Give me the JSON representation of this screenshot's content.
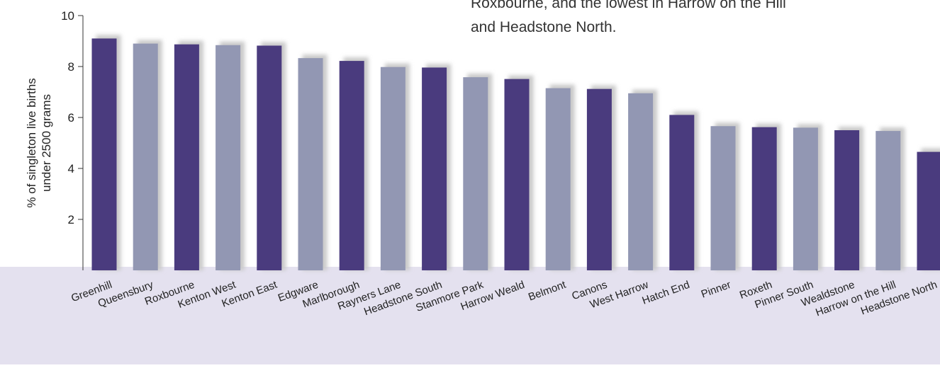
{
  "caption": {
    "line1": "Roxbourne, and the lowest in Harrow on the Hill",
    "line2": "and Headstone North."
  },
  "colors": {
    "dark_bar": "#4a3b7e",
    "light_bar": "#9297b3",
    "band": "#e4e1ef",
    "shadow": "#c9c9c9"
  },
  "chart_data": {
    "type": "bar",
    "title": "",
    "xlabel": "",
    "ylabel_lines": [
      "% of singleton live births",
      "under 2500 grams"
    ],
    "ylim": [
      0,
      10
    ],
    "yticks": [
      2,
      4,
      6,
      8,
      10
    ],
    "tick_labels": [
      "2",
      "4",
      "6",
      "8",
      "10"
    ],
    "grid": false,
    "categories": [
      "Greenhill",
      "Queensbury",
      "Roxbourne",
      "Kenton West",
      "Kenton East",
      "Edgware",
      "Marlborough",
      "Rayners Lane",
      "Headstone South",
      "Stanmore Park",
      "Harrow Weald",
      "Belmont",
      "Canons",
      "West Harrow",
      "Hatch End",
      "Pinner",
      "Roxeth",
      "Pinner South",
      "Wealdstone",
      "Harrow on the Hill",
      "Headstone North"
    ],
    "values": [
      9.1,
      8.9,
      8.87,
      8.84,
      8.82,
      8.33,
      8.22,
      7.98,
      7.96,
      7.58,
      7.51,
      7.15,
      7.12,
      6.95,
      6.1,
      5.66,
      5.62,
      5.6,
      5.5,
      5.47,
      4.65
    ],
    "bar_shades": [
      "dark",
      "light",
      "dark",
      "light",
      "dark",
      "light",
      "dark",
      "light",
      "dark",
      "light",
      "dark",
      "light",
      "dark",
      "light",
      "dark",
      "light",
      "dark",
      "light",
      "dark",
      "light",
      "dark"
    ]
  }
}
